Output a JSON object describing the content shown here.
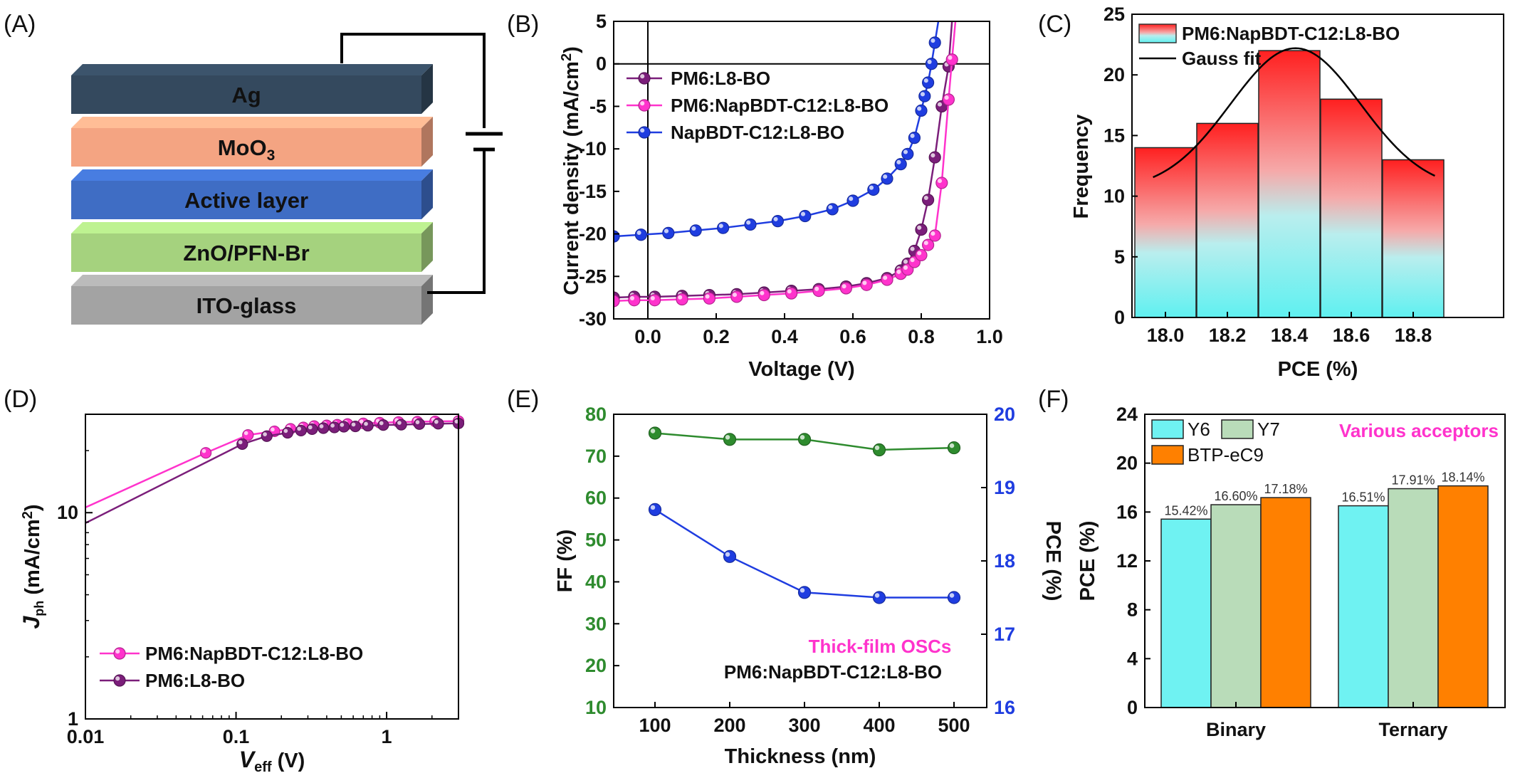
{
  "panels": {
    "A": {
      "label": "(A)",
      "layers": [
        "Ag",
        "MoO3",
        "Active layer",
        "ZnO/PFN-Br",
        "ITO-glass"
      ],
      "colors": [
        "#34495e",
        "#f4a482",
        "#3f6dc4",
        "#a5d27e",
        "#a3a3a3"
      ]
    },
    "B": "(B)",
    "C": "(C)",
    "D": "(D)",
    "E": "(E)",
    "F": "(F)"
  },
  "chart_data": [
    {
      "panel": "B",
      "type": "line",
      "xlabel": "Voltage (V)",
      "ylabel": "Current density (mA/cm2)",
      "xlim": [
        -0.1,
        1.0
      ],
      "ylim": [
        -30,
        5
      ],
      "xticks": [
        "0.0",
        "0.2",
        "0.4",
        "0.6",
        "0.8",
        "1.0"
      ],
      "yticks": [
        "5",
        "0",
        "-5",
        "-10",
        "-15",
        "-20",
        "-25",
        "-30"
      ],
      "legend": "top-left",
      "series": [
        {
          "name": "PM6:L8-BO",
          "color": "#7b1e7a",
          "x": [
            -0.1,
            -0.04,
            0.02,
            0.1,
            0.18,
            0.26,
            0.34,
            0.42,
            0.5,
            0.58,
            0.64,
            0.7,
            0.74,
            0.76,
            0.78,
            0.8,
            0.82,
            0.84,
            0.86,
            0.88,
            0.89
          ],
          "y": [
            -27.5,
            -27.4,
            -27.4,
            -27.3,
            -27.2,
            -27.1,
            -26.9,
            -26.7,
            -26.5,
            -26.2,
            -25.8,
            -25.2,
            -24.3,
            -23.5,
            -22,
            -19.5,
            -16,
            -11,
            -5,
            -0.3,
            5
          ]
        },
        {
          "name": "PM6:NapBDT-C12:L8-BO",
          "color": "#ff33cc",
          "x": [
            -0.1,
            -0.04,
            0.02,
            0.1,
            0.18,
            0.26,
            0.34,
            0.42,
            0.5,
            0.58,
            0.64,
            0.7,
            0.74,
            0.76,
            0.78,
            0.8,
            0.82,
            0.84,
            0.86,
            0.88,
            0.89,
            0.9
          ],
          "y": [
            -27.9,
            -27.8,
            -27.8,
            -27.7,
            -27.6,
            -27.4,
            -27.2,
            -27,
            -26.7,
            -26.4,
            -26,
            -25.4,
            -24.7,
            -24.2,
            -23.3,
            -22.5,
            -21.3,
            -20.2,
            -14,
            -4.2,
            0.5,
            5
          ]
        },
        {
          "name": "NapBDT-C12:L8-BO",
          "color": "#1f3de0",
          "x": [
            -0.1,
            -0.02,
            0.06,
            0.14,
            0.22,
            0.3,
            0.38,
            0.46,
            0.54,
            0.6,
            0.66,
            0.7,
            0.74,
            0.76,
            0.78,
            0.8,
            0.81,
            0.82,
            0.83,
            0.84,
            0.85
          ],
          "y": [
            -20.3,
            -20.1,
            -19.9,
            -19.6,
            -19.3,
            -18.9,
            -18.5,
            -17.9,
            -17.1,
            -16.1,
            -14.8,
            -13.5,
            -11.8,
            -10.6,
            -8.7,
            -5.5,
            -3.8,
            -2.2,
            0,
            2.5,
            5
          ]
        }
      ]
    },
    {
      "panel": "C",
      "type": "bar",
      "xlabel": "PCE (%)",
      "ylabel": "Frequency",
      "categories": [
        "18.0",
        "18.2",
        "18.4",
        "18.6",
        "18.8"
      ],
      "values": [
        14,
        16,
        22,
        18,
        13
      ],
      "yticks": [
        "0",
        "5",
        "10",
        "15",
        "20",
        "25"
      ],
      "ylim": [
        0,
        25
      ],
      "legend": [
        "PM6:NapBDT-C12:L8-BO",
        "Gauss fit"
      ]
    },
    {
      "panel": "D",
      "type": "line",
      "scale": "log-log",
      "xlabel_main": "V",
      "xlabel_sub": "eff",
      "xlabel_rest": " (V)",
      "ylabel_main": "J",
      "ylabel_sub": "ph",
      "ylabel_rest": " (mA/cm2)",
      "xticks": [
        "0.01",
        "0.1",
        "1"
      ],
      "yticks": [
        "1",
        "10"
      ],
      "xlim": [
        0.01,
        3
      ],
      "ylim": [
        1,
        30
      ],
      "legend": "bottom-left",
      "series": [
        {
          "name": "PM6:NapBDT-C12:L8-BO",
          "color": "#ff33cc",
          "x": [
            0.01,
            0.063,
            0.12,
            0.18,
            0.23,
            0.28,
            0.33,
            0.4,
            0.47,
            0.55,
            0.7,
            0.9,
            1.2,
            1.6,
            2.1,
            3.0
          ],
          "y": [
            10.6,
            19.5,
            23.8,
            24.8,
            25.5,
            25.9,
            26.3,
            26.5,
            26.7,
            26.9,
            27.1,
            27.3,
            27.5,
            27.6,
            27.7,
            27.8
          ]
        },
        {
          "name": "PM6:L8-BO",
          "color": "#7b1e7a",
          "x": [
            0.01,
            0.11,
            0.16,
            0.22,
            0.27,
            0.32,
            0.38,
            0.45,
            0.52,
            0.62,
            0.75,
            0.95,
            1.25,
            1.65,
            2.2,
            3.0
          ],
          "y": [
            8.9,
            21.5,
            23.5,
            24.4,
            25,
            25.4,
            25.7,
            25.9,
            26.1,
            26.2,
            26.4,
            26.6,
            26.7,
            26.9,
            27,
            27.1
          ]
        }
      ]
    },
    {
      "panel": "E",
      "type": "line",
      "xlabel": "Thickness (nm)",
      "ylabel_left": "FF (%)",
      "ylabel_right": "PCE (%)",
      "x": [
        100,
        200,
        300,
        400,
        500
      ],
      "xticks": [
        "100",
        "200",
        "300",
        "400",
        "500"
      ],
      "yticks_left": [
        "10",
        "20",
        "30",
        "40",
        "50",
        "60",
        "70",
        "80"
      ],
      "yticks_right": [
        "16",
        "17",
        "18",
        "19",
        "20"
      ],
      "ylim_left": [
        10,
        80
      ],
      "ylim_right": [
        16,
        20
      ],
      "series": [
        {
          "name": "FF",
          "color": "#2e8b2e",
          "axis": "left",
          "values": [
            75.5,
            74,
            74,
            71.5,
            72
          ]
        },
        {
          "name": "PCE",
          "color": "#1f3de0",
          "axis": "right",
          "values": [
            18.7,
            18.06,
            17.57,
            17.5,
            17.5
          ]
        }
      ],
      "annotations": [
        "Thick-film OSCs",
        "PM6:NapBDT-C12:L8-BO"
      ],
      "annotation_colors": [
        "#ff33cc",
        "#111111"
      ]
    },
    {
      "panel": "F",
      "type": "bar",
      "ylabel": "PCE (%)",
      "categories": [
        "Binary",
        "Ternary"
      ],
      "yticks": [
        "0",
        "4",
        "8",
        "12",
        "16",
        "20",
        "24"
      ],
      "ylim": [
        0,
        24
      ],
      "series": [
        {
          "name": "Y6",
          "color": "#6ff2f2",
          "values": [
            15.42,
            16.51
          ],
          "labels": [
            "15.42%",
            "16.51%"
          ]
        },
        {
          "name": "Y7",
          "color": "#b9dcb9",
          "values": [
            16.6,
            17.91
          ],
          "labels": [
            "16.60%",
            "17.91%"
          ]
        },
        {
          "name": "BTP-eC9",
          "color": "#ff8000",
          "values": [
            17.18,
            18.14
          ],
          "labels": [
            "17.18%",
            "18.14%"
          ]
        }
      ],
      "annotation": "Various acceptors",
      "annotation_color": "#ff33cc"
    }
  ]
}
